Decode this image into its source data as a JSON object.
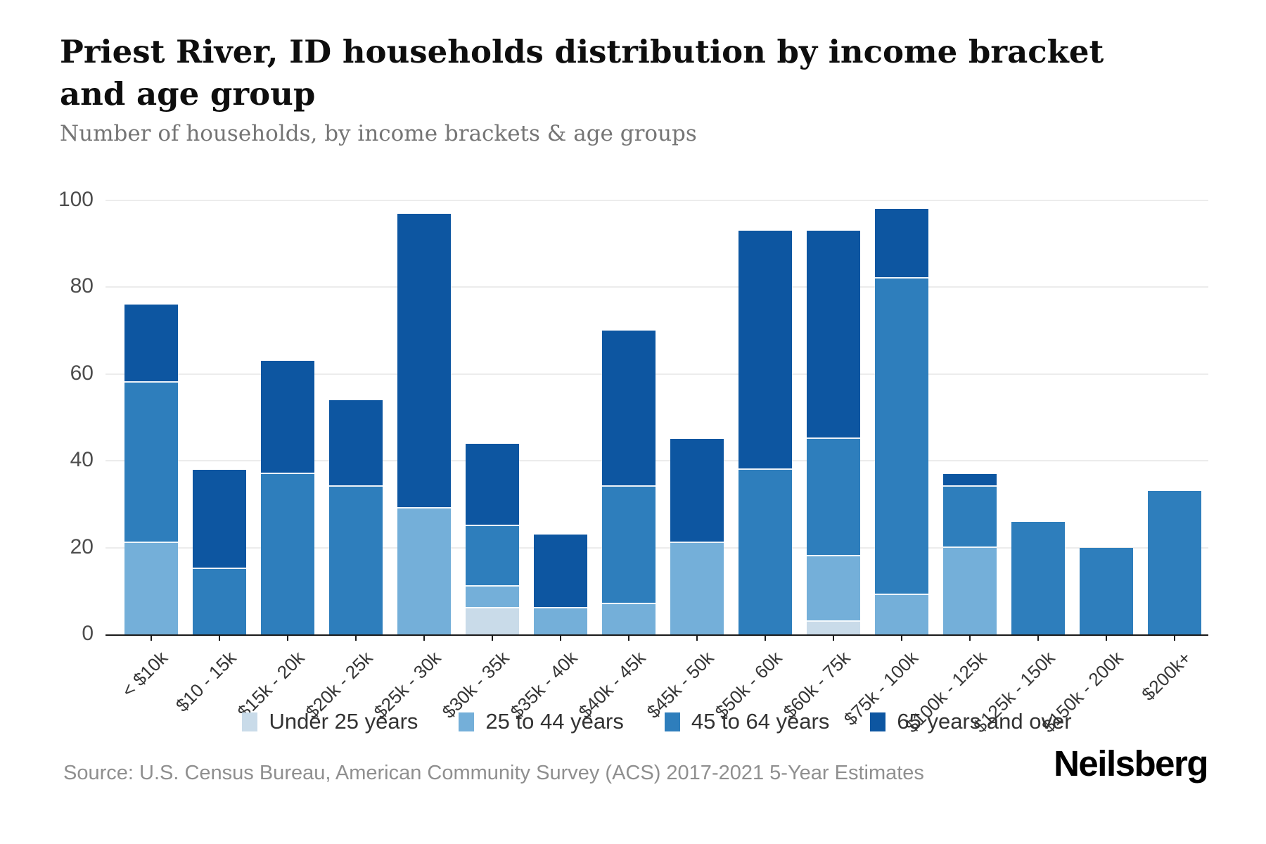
{
  "page": {
    "title": "Priest River, ID households distribution by income bracket and age group",
    "subtitle": "Number of households, by income brackets & age groups",
    "source": "Source: U.S. Census Bureau, American Community Survey (ACS) 2017-2021 5-Year Estimates",
    "brand": "Neilsberg"
  },
  "chart_data": {
    "type": "stacked_bar",
    "title": "Priest River, ID households distribution by income bracket and age group",
    "subtitle": "Number of households, by income brackets & age groups",
    "xlabel": "",
    "ylabel": "",
    "ylim": [
      0,
      100
    ],
    "yticks": [
      0,
      20,
      40,
      60,
      80,
      100
    ],
    "grid": true,
    "legend_position": "bottom",
    "categories": [
      "< $10k",
      "$10 - 15k",
      "$15k - 20k",
      "$20k - 25k",
      "$25k - 30k",
      "$30k - 35k",
      "$35k - 40k",
      "$40k - 45k",
      "$45k - 50k",
      "$50k - 60k",
      "$60k - 75k",
      "$75k - 100k",
      "$100k - 125k",
      "$125k - 150k",
      "$150k - 200k",
      "$200k+"
    ],
    "series": [
      {
        "name": "Under 25 years",
        "color": "#C9DBE9",
        "values": [
          0,
          0,
          0,
          0,
          0,
          6,
          0,
          0,
          0,
          0,
          3,
          0,
          0,
          0,
          0,
          0
        ]
      },
      {
        "name": "25 to 44 years",
        "color": "#74AFD9",
        "values": [
          21,
          0,
          0,
          0,
          29,
          5,
          6,
          7,
          21,
          0,
          15,
          9,
          20,
          0,
          0,
          0
        ]
      },
      {
        "name": "45 to 64 years",
        "color": "#2E7EBC",
        "values": [
          37,
          15,
          37,
          34,
          0,
          14,
          0,
          27,
          0,
          38,
          27,
          73,
          14,
          26,
          20,
          33
        ]
      },
      {
        "name": "65 years and over",
        "color": "#0D56A1",
        "values": [
          18,
          23,
          26,
          20,
          68,
          19,
          17,
          36,
          24,
          55,
          48,
          16,
          3,
          0,
          0,
          0
        ]
      }
    ],
    "totals": [
      76,
      38,
      63,
      54,
      97,
      44,
      23,
      70,
      45,
      93,
      93,
      98,
      37,
      26,
      20,
      33
    ]
  }
}
